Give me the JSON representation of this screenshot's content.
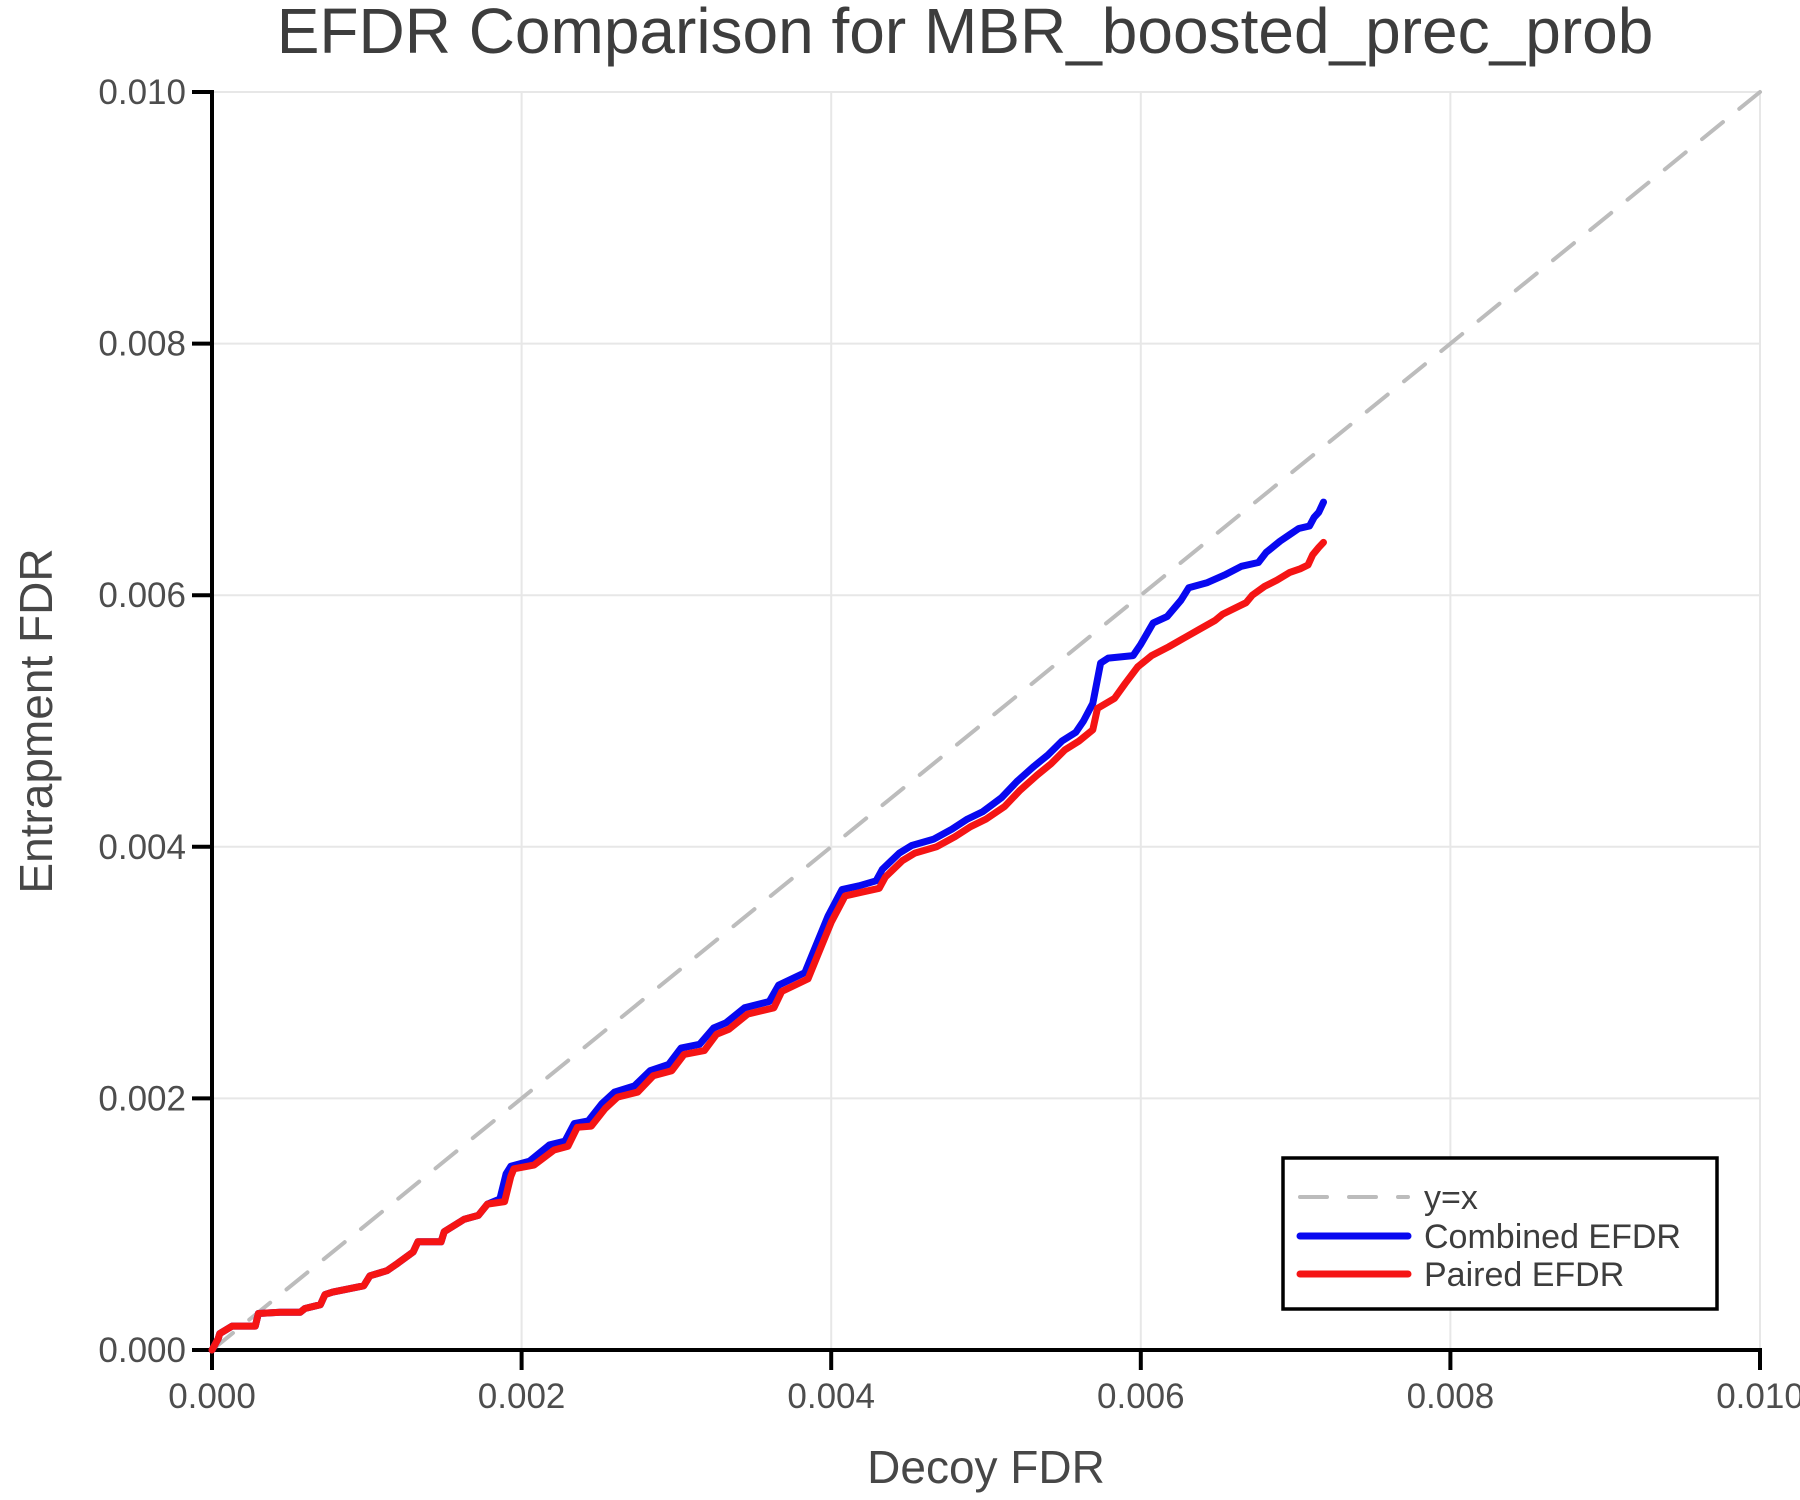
{
  "chart_data": {
    "type": "line",
    "title": "EFDR Comparison for MBR_boosted_prec_prob",
    "xlabel": "Decoy FDR",
    "ylabel": "Entrapment FDR",
    "xlim": [
      0,
      0.01
    ],
    "ylim": [
      0,
      0.01
    ],
    "grid": true,
    "legend_position": "lower right",
    "x_ticks": {
      "values": [
        0,
        0.002,
        0.004,
        0.006,
        0.008,
        0.01
      ],
      "labels": [
        "0.000",
        "0.002",
        "0.004",
        "0.006",
        "0.008",
        "0.010"
      ]
    },
    "y_ticks": {
      "values": [
        0,
        0.002,
        0.004,
        0.006,
        0.008,
        0.01
      ],
      "labels": [
        "0.000",
        "0.002",
        "0.004",
        "0.006",
        "0.008",
        "0.010"
      ]
    },
    "points_unit_note": "series point x,y values are in units of 0.0001 (multiply by points_scale for absolute FDR values)",
    "series": [
      {
        "name": "y=x",
        "color": "#bcbcbc",
        "style": "dashed",
        "dash": "27 21",
        "line_width": 4,
        "points_scale": 0.0001,
        "points": [
          [
            0,
            0
          ],
          [
            100,
            100
          ]
        ]
      },
      {
        "name": "Combined EFDR",
        "color": "#0808f0",
        "style": "solid",
        "dash": null,
        "line_width": 7,
        "points_scale": 0.0001,
        "points": [
          [
            0,
            0
          ],
          [
            0.4,
            0.9
          ],
          [
            0.5,
            1.3
          ],
          [
            1.3,
            1.9
          ],
          [
            2.8,
            1.9
          ],
          [
            3,
            2.9
          ],
          [
            4.4,
            3
          ],
          [
            5.7,
            3
          ],
          [
            6,
            3.3
          ],
          [
            7,
            3.6
          ],
          [
            7.3,
            4.4
          ],
          [
            7.8,
            4.6
          ],
          [
            9.8,
            5.1
          ],
          [
            10.2,
            5.9
          ],
          [
            11.3,
            6.3
          ],
          [
            12,
            6.9
          ],
          [
            13,
            7.8
          ],
          [
            13.3,
            8.6
          ],
          [
            14.8,
            8.6
          ],
          [
            15,
            9.4
          ],
          [
            16.3,
            10.4
          ],
          [
            17.2,
            10.7
          ],
          [
            17.8,
            11.6
          ],
          [
            18.6,
            12
          ],
          [
            19,
            14
          ],
          [
            19.3,
            14.6
          ],
          [
            20.5,
            15
          ],
          [
            21.8,
            16.3
          ],
          [
            22.8,
            16.6
          ],
          [
            23.4,
            18
          ],
          [
            24.3,
            18.2
          ],
          [
            25.2,
            19.6
          ],
          [
            26,
            20.5
          ],
          [
            27.3,
            21
          ],
          [
            28.3,
            22.2
          ],
          [
            29.5,
            22.7
          ],
          [
            30.3,
            24
          ],
          [
            31.5,
            24.3
          ],
          [
            32.4,
            25.6
          ],
          [
            33.2,
            26
          ],
          [
            34.4,
            27.2
          ],
          [
            36,
            27.7
          ],
          [
            36.6,
            29
          ],
          [
            38.3,
            30
          ],
          [
            38.8,
            31.5
          ],
          [
            39.2,
            32.7
          ],
          [
            39.8,
            34.5
          ],
          [
            40.7,
            36.6
          ],
          [
            41.8,
            36.9
          ],
          [
            42.9,
            37.3
          ],
          [
            43.3,
            38.2
          ],
          [
            44.4,
            39.5
          ],
          [
            45.2,
            40.1
          ],
          [
            46.6,
            40.6
          ],
          [
            47.8,
            41.4
          ],
          [
            48.8,
            42.2
          ],
          [
            49.8,
            42.8
          ],
          [
            51,
            43.9
          ],
          [
            52,
            45.2
          ],
          [
            53.1,
            46.4
          ],
          [
            54,
            47.3
          ],
          [
            54.9,
            48.4
          ],
          [
            55.8,
            49.1
          ],
          [
            56.3,
            50
          ],
          [
            56.9,
            51.4
          ],
          [
            57.4,
            54.6
          ],
          [
            57.9,
            55
          ],
          [
            59.5,
            55.2
          ],
          [
            60,
            56.1
          ],
          [
            60.8,
            57.8
          ],
          [
            61.7,
            58.3
          ],
          [
            62.6,
            59.6
          ],
          [
            63.1,
            60.6
          ],
          [
            64.3,
            61
          ],
          [
            65.4,
            61.6
          ],
          [
            66.5,
            62.3
          ],
          [
            67.6,
            62.6
          ],
          [
            68.1,
            63.4
          ],
          [
            69,
            64.3
          ],
          [
            69.6,
            64.8
          ],
          [
            70.2,
            65.3
          ],
          [
            70.9,
            65.5
          ],
          [
            71.2,
            66.2
          ],
          [
            71.5,
            66.6
          ],
          [
            71.8,
            67.4
          ]
        ]
      },
      {
        "name": "Paired EFDR",
        "color": "#f51414",
        "style": "solid",
        "dash": null,
        "line_width": 7,
        "points_scale": 0.0001,
        "points": [
          [
            0,
            0
          ],
          [
            0.4,
            0.9
          ],
          [
            0.5,
            1.3
          ],
          [
            1.3,
            1.9
          ],
          [
            2.8,
            1.9
          ],
          [
            3,
            2.9
          ],
          [
            4.4,
            3
          ],
          [
            5.7,
            3
          ],
          [
            6,
            3.3
          ],
          [
            7,
            3.6
          ],
          [
            7.3,
            4.4
          ],
          [
            7.8,
            4.6
          ],
          [
            9.8,
            5.1
          ],
          [
            10.2,
            5.9
          ],
          [
            11.3,
            6.3
          ],
          [
            12,
            6.9
          ],
          [
            13,
            7.8
          ],
          [
            13.3,
            8.6
          ],
          [
            14.8,
            8.6
          ],
          [
            15,
            9.4
          ],
          [
            16.3,
            10.4
          ],
          [
            17.2,
            10.7
          ],
          [
            17.8,
            11.6
          ],
          [
            18.9,
            11.8
          ],
          [
            19.3,
            13.8
          ],
          [
            19.5,
            14.4
          ],
          [
            20.8,
            14.7
          ],
          [
            22.1,
            15.9
          ],
          [
            23,
            16.2
          ],
          [
            23.6,
            17.7
          ],
          [
            24.5,
            17.8
          ],
          [
            25.4,
            19.2
          ],
          [
            26.2,
            20.1
          ],
          [
            27.5,
            20.5
          ],
          [
            28.5,
            21.8
          ],
          [
            29.7,
            22.2
          ],
          [
            30.5,
            23.5
          ],
          [
            31.8,
            23.8
          ],
          [
            32.6,
            25.1
          ],
          [
            33.4,
            25.5
          ],
          [
            34.6,
            26.7
          ],
          [
            36.3,
            27.2
          ],
          [
            36.8,
            28.5
          ],
          [
            38.5,
            29.5
          ],
          [
            39,
            31
          ],
          [
            39.4,
            32.2
          ],
          [
            40,
            34
          ],
          [
            40.9,
            36.1
          ],
          [
            42,
            36.4
          ],
          [
            43.1,
            36.7
          ],
          [
            43.5,
            37.6
          ],
          [
            44.6,
            38.9
          ],
          [
            45.4,
            39.5
          ],
          [
            46.8,
            40
          ],
          [
            48,
            40.8
          ],
          [
            49,
            41.6
          ],
          [
            50,
            42.2
          ],
          [
            51.2,
            43.2
          ],
          [
            52.2,
            44.5
          ],
          [
            53.3,
            45.7
          ],
          [
            54.2,
            46.6
          ],
          [
            55.1,
            47.7
          ],
          [
            56,
            48.4
          ],
          [
            56.9,
            49.3
          ],
          [
            57.2,
            51
          ],
          [
            58.3,
            51.8
          ],
          [
            59,
            53
          ],
          [
            59.8,
            54.3
          ],
          [
            60.7,
            55.2
          ],
          [
            61.8,
            55.9
          ],
          [
            62.8,
            56.6
          ],
          [
            63.8,
            57.3
          ],
          [
            64.8,
            58
          ],
          [
            65.3,
            58.5
          ],
          [
            66.3,
            59.1
          ],
          [
            66.8,
            59.4
          ],
          [
            67.2,
            60
          ],
          [
            68,
            60.7
          ],
          [
            68.8,
            61.2
          ],
          [
            69.6,
            61.8
          ],
          [
            70.3,
            62.1
          ],
          [
            70.8,
            62.4
          ],
          [
            71.1,
            63.2
          ],
          [
            71.5,
            63.8
          ],
          [
            71.8,
            64.2
          ]
        ]
      }
    ]
  },
  "colors": {
    "grid": "#e7e7e7",
    "spine": "#000000",
    "title_text": "#3d3d3d",
    "tick_text": "#4d4d4d",
    "diagonal": "#bcbcbc",
    "combined": "#0808f0",
    "paired": "#f51414"
  }
}
